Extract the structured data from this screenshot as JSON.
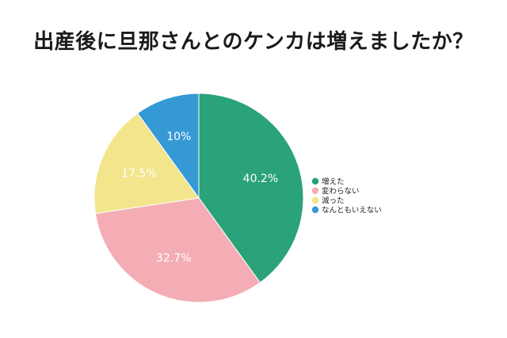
{
  "title": "出産後に旦那さんとのケンカは増えましたか？",
  "chart_data": {
    "type": "pie",
    "title": "出産後に旦那さんとのケンカは増えましたか？",
    "slices": [
      {
        "label": "増えた",
        "value": 40.2,
        "display": "40.2%",
        "color": "#2aa27a"
      },
      {
        "label": "変わらない",
        "value": 32.7,
        "display": "32.7%",
        "color": "#f4adb4"
      },
      {
        "label": "減った",
        "value": 17.5,
        "display": "17.5%",
        "color": "#f2e58c"
      },
      {
        "label": "なんともいえない",
        "value": 10,
        "display": "10%",
        "color": "#3599d6"
      }
    ],
    "start": "top",
    "direction": "clockwise",
    "legend": "right"
  }
}
